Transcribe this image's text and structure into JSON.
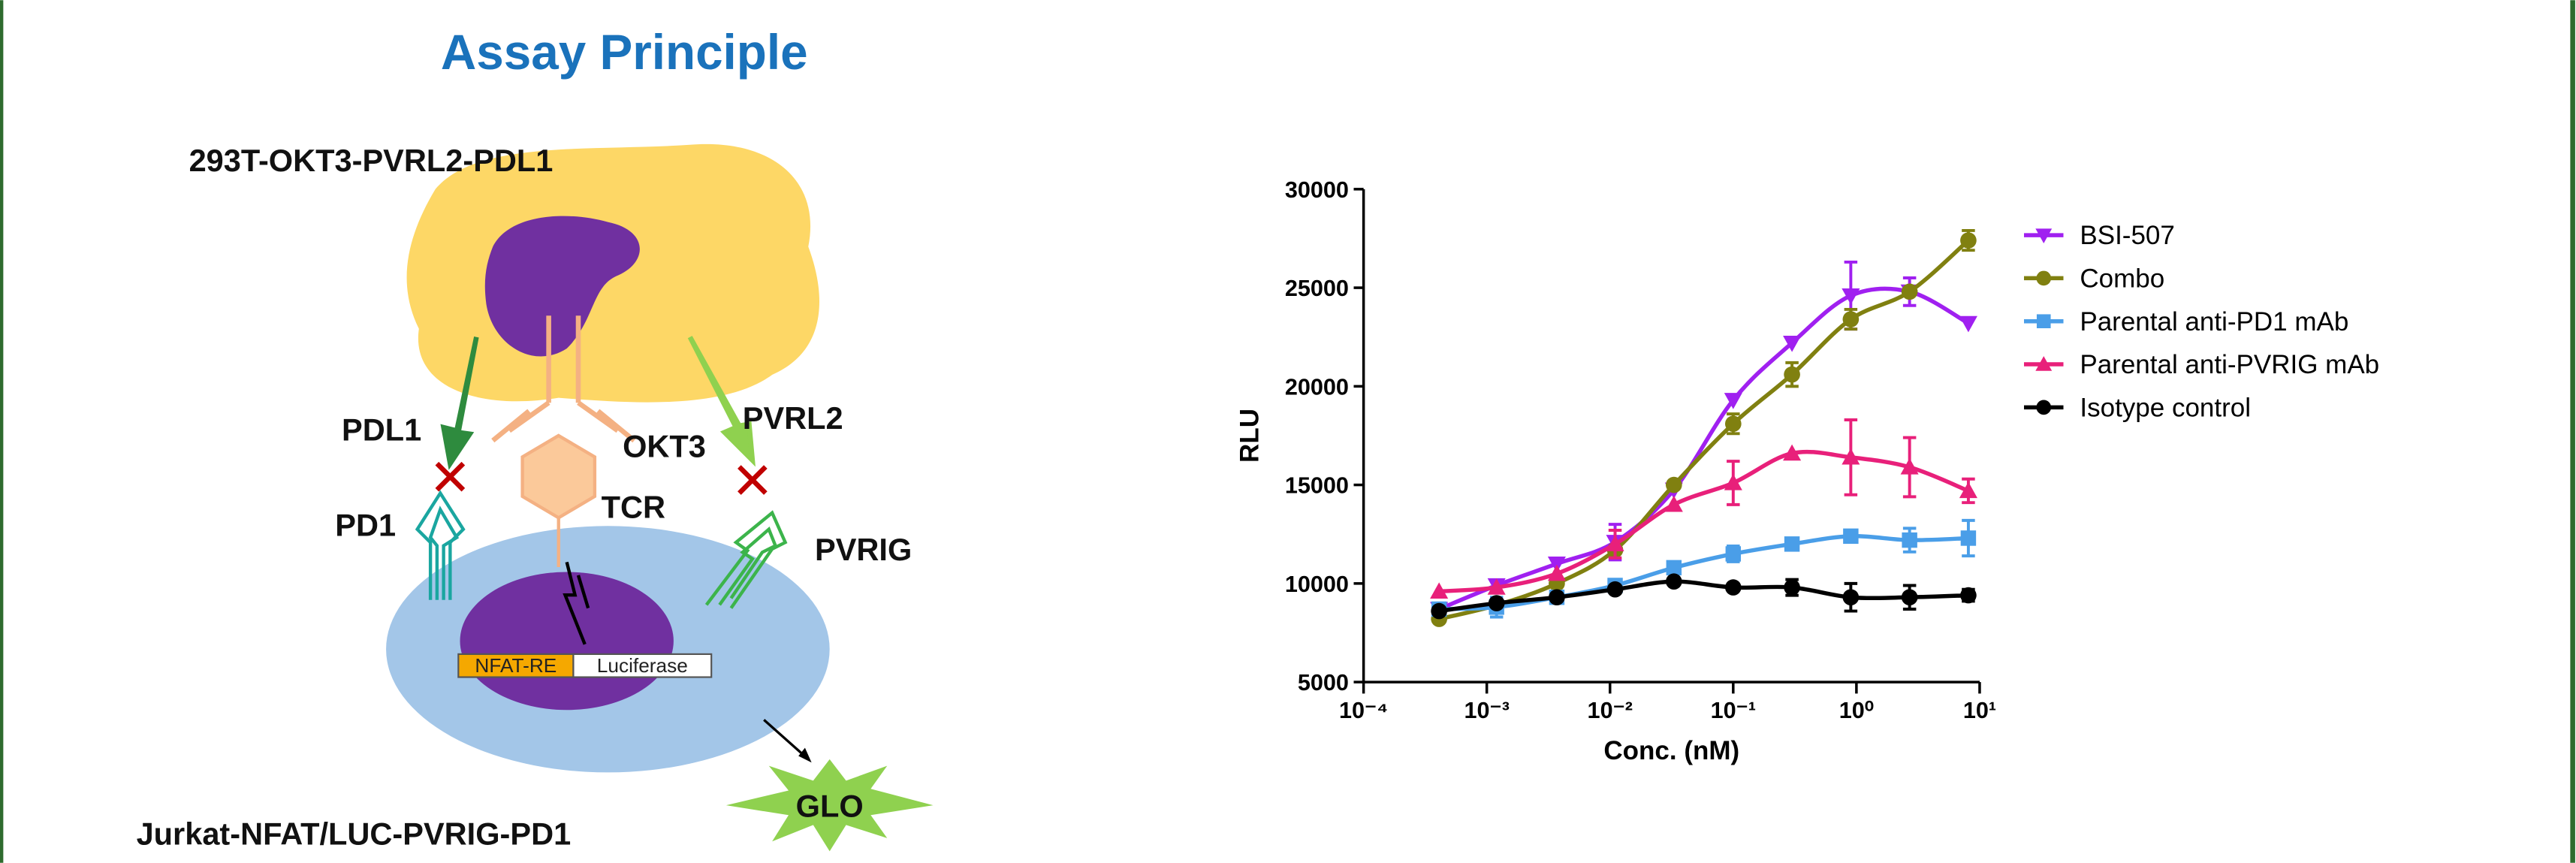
{
  "title": "Assay Principle",
  "diagram": {
    "top_cell": "293T-OKT3-PVRL2-PDL1",
    "bottom_cell": "Jurkat-NFAT/LUC-PVRIG-PD1",
    "pdl1": "PDL1",
    "pd1": "PD1",
    "okt3": "OKT3",
    "tcr": "TCR",
    "pvrl2": "PVRL2",
    "pvrig": "PVRIG",
    "nfat": "NFAT-RE",
    "luciferase": "Luciferase",
    "glo": "GLO"
  },
  "chart_data": {
    "type": "scatter",
    "xlabel": "Conc. (nM)",
    "ylabel": "RLU",
    "xscale": "log",
    "xlim": [
      0.0001,
      10
    ],
    "xticks": [
      {
        "value": 0.0001,
        "label": "10⁻⁴"
      },
      {
        "value": 0.001,
        "label": "10⁻³"
      },
      {
        "value": 0.01,
        "label": "10⁻²"
      },
      {
        "value": 0.1,
        "label": "10⁻¹"
      },
      {
        "value": 1,
        "label": "10⁰"
      },
      {
        "value": 10,
        "label": "10¹"
      }
    ],
    "ylim": [
      5000,
      30000
    ],
    "yticks": [
      5000,
      10000,
      15000,
      20000,
      25000,
      30000
    ],
    "legend": "upper right",
    "x": [
      0.00041,
      0.0012,
      0.0037,
      0.011,
      0.033,
      0.1,
      0.3,
      0.9,
      2.7,
      8.1
    ],
    "series": [
      {
        "name": "BSI-507",
        "color": "#a020f0",
        "marker": "triangle-down",
        "values": [
          8700,
          9900,
          11000,
          12100,
          14750,
          19300,
          22200,
          24600,
          24800,
          23200
        ],
        "errors": [
          null,
          null,
          null,
          900,
          null,
          null,
          null,
          1700,
          700,
          null
        ]
      },
      {
        "name": "Combo",
        "color": "#808010",
        "marker": "circle",
        "values": [
          8200,
          8900,
          10000,
          11700,
          15000,
          18100,
          20600,
          23400,
          24800,
          27400
        ],
        "errors": [
          null,
          null,
          null,
          null,
          null,
          500,
          600,
          500,
          null,
          500
        ]
      },
      {
        "name": "Parental anti-PD1 mAb",
        "color": "#4a9ee8",
        "marker": "square",
        "values": [
          8700,
          8800,
          9300,
          9900,
          10800,
          11500,
          12000,
          12400,
          12200,
          12300
        ],
        "errors": [
          null,
          500,
          null,
          null,
          null,
          400,
          null,
          null,
          600,
          900
        ]
      },
      {
        "name": "Parental anti-PVRIG mAb",
        "color": "#e8207a",
        "marker": "triangle-up",
        "values": [
          9600,
          9800,
          10500,
          12000,
          14000,
          15100,
          16600,
          16400,
          15900,
          14700
        ],
        "errors": [
          null,
          null,
          null,
          700,
          null,
          1100,
          null,
          1900,
          1500,
          600
        ]
      },
      {
        "name": "Isotype control",
        "color": "#000000",
        "marker": "circle",
        "values": [
          8600,
          9000,
          9300,
          9700,
          10100,
          9800,
          9800,
          9300,
          9300,
          9400
        ],
        "errors": [
          null,
          null,
          null,
          null,
          null,
          null,
          400,
          700,
          600,
          300
        ]
      }
    ]
  }
}
